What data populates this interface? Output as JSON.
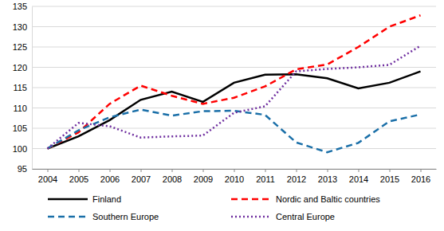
{
  "chart_data": {
    "type": "line",
    "categories": [
      "2004",
      "2005",
      "2006",
      "2007",
      "2008",
      "2009",
      "2010",
      "2011",
      "2012",
      "2013",
      "2014",
      "2015",
      "2016"
    ],
    "series": [
      {
        "name": "Finland",
        "color": "#000000",
        "line_style": "solid",
        "values": [
          100,
          103,
          107,
          112,
          114,
          111.5,
          116.2,
          118.2,
          118.3,
          117.3,
          114.8,
          116.2,
          119
        ]
      },
      {
        "name": "Nordic and Baltic countries",
        "color": "#ff0000",
        "line_style": "dashed",
        "values": [
          100,
          104,
          111,
          115.5,
          113,
          111,
          112.5,
          115.3,
          119.5,
          120.7,
          125,
          130,
          132.8
        ]
      },
      {
        "name": "Southern Europe",
        "color": "#1a6fa8",
        "line_style": "dashed",
        "values": [
          100,
          104.5,
          107.7,
          109.6,
          108.1,
          109.2,
          109.3,
          108.3,
          101.5,
          99.1,
          101.4,
          106.7,
          108.4
        ]
      },
      {
        "name": "Central Europe",
        "color": "#7030a0",
        "line_style": "dotted",
        "values": [
          100,
          106.3,
          105.5,
          102.7,
          103,
          103.2,
          108.8,
          110.4,
          119,
          119.6,
          120,
          120.6,
          125.3
        ]
      }
    ],
    "ylim": [
      95,
      135
    ],
    "yticks": [
      95,
      100,
      105,
      110,
      115,
      120,
      125,
      130,
      135
    ],
    "grid": true,
    "legend": "bottom"
  }
}
